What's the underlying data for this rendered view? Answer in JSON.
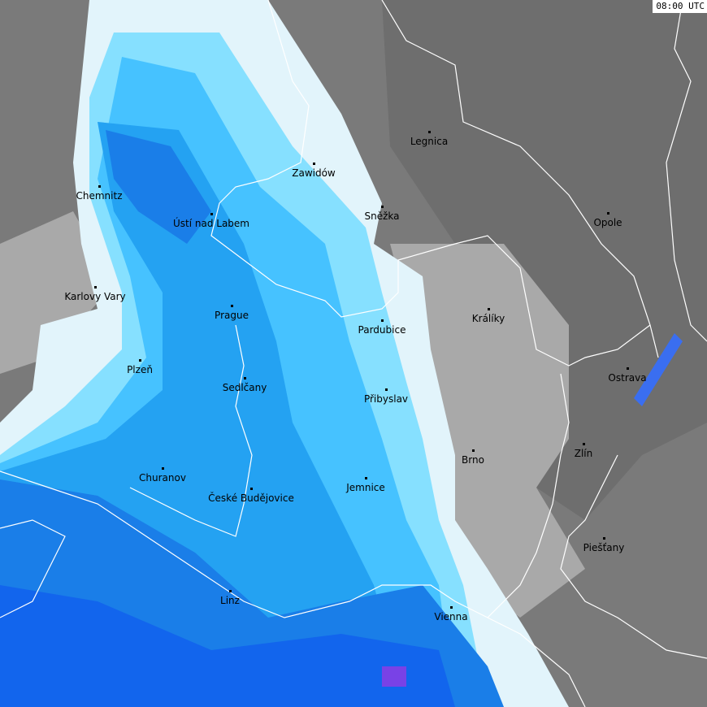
{
  "timestamp": "08:00 UTC",
  "colors": {
    "background_dark": "#6f6f6f",
    "background": "#808080",
    "cloud_light": "#a9a9a9",
    "precip_very_light": "#e2f4fb",
    "precip_light": "#86e0ff",
    "precip_moderate": "#46c2ff",
    "precip_medium": "#24a2f2",
    "precip_heavy": "#1a7ee8",
    "precip_very_heavy": "#0c50f0",
    "precip_extreme": "#e020e0",
    "borders": "#ffffff"
  },
  "cities": [
    {
      "name": "Legnica"
    },
    {
      "name": "Zawidów"
    },
    {
      "name": "Chemnitz"
    },
    {
      "name": "Sněžka"
    },
    {
      "name": "Opole"
    },
    {
      "name": "Ústí nad Labem"
    },
    {
      "name": "Karlovy Vary"
    },
    {
      "name": "Prague"
    },
    {
      "name": "Králíky"
    },
    {
      "name": "Pardubice"
    },
    {
      "name": "Plzeň"
    },
    {
      "name": "Ostrava"
    },
    {
      "name": "Sedlčany"
    },
    {
      "name": "Přibyslav"
    },
    {
      "name": "Brno"
    },
    {
      "name": "Zlín"
    },
    {
      "name": "Churanov"
    },
    {
      "name": "Jemnice"
    },
    {
      "name": "České Budějovice"
    },
    {
      "name": "Piešťany"
    },
    {
      "name": "Linz"
    },
    {
      "name": "Vienna"
    }
  ]
}
